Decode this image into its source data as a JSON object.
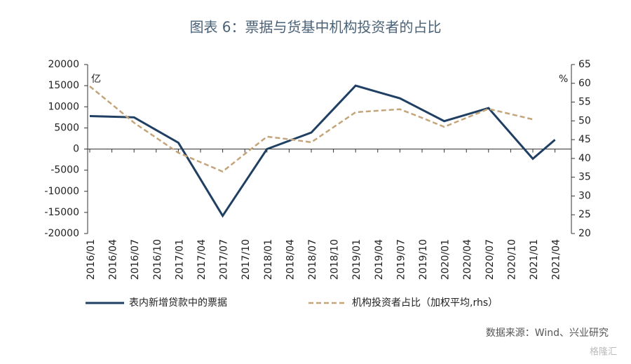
{
  "chart_data": {
    "type": "line",
    "title": "图表 6：票据与货基中机构投资者的占比",
    "y_unit": "亿",
    "y2_unit": "%",
    "categories": [
      "2016/01",
      "2016/04",
      "2016/07",
      "2016/10",
      "2017/01",
      "2017/04",
      "2017/07",
      "2017/10",
      "2018/01",
      "2018/04",
      "2018/07",
      "2018/10",
      "2019/01",
      "2019/04",
      "2019/07",
      "2019/10",
      "2020/01",
      "2020/04",
      "2020/07",
      "2020/10",
      "2021/01",
      "2021/04"
    ],
    "series": [
      {
        "name": "表内新增贷款中的票据",
        "color": "#1f3f63",
        "dash": false,
        "values": [
          7800,
          7650,
          7500,
          4500,
          1500,
          -7150,
          -15800,
          -7900,
          0,
          1950,
          3900,
          9450,
          15000,
          13500,
          12000,
          9300,
          6600,
          8150,
          9700,
          3700,
          -2300,
          2200
        ]
      },
      {
        "name": "机构投资者占比（加权平均,rhs）",
        "color": "#c4a57a",
        "dash": true,
        "axis": "y2",
        "values": [
          59.2,
          54.4,
          49.5,
          45.5,
          41.5,
          39,
          36.5,
          41.2,
          45.8,
          45.1,
          44.3,
          48.3,
          52.3,
          52.7,
          53.1,
          50.8,
          48.4,
          50.8,
          53.2,
          51.8,
          50.4,
          null
        ]
      }
    ],
    "ylim": [
      -20000,
      20000
    ],
    "yticks": [
      -20000,
      -15000,
      -10000,
      -5000,
      0,
      5000,
      10000,
      15000,
      20000
    ],
    "y2lim": [
      20,
      65
    ],
    "y2ticks": [
      20,
      25,
      30,
      35,
      40,
      45,
      50,
      55,
      60,
      65
    ],
    "source": "数据来源：Wind、兴业研究",
    "watermark": "格隆汇"
  }
}
